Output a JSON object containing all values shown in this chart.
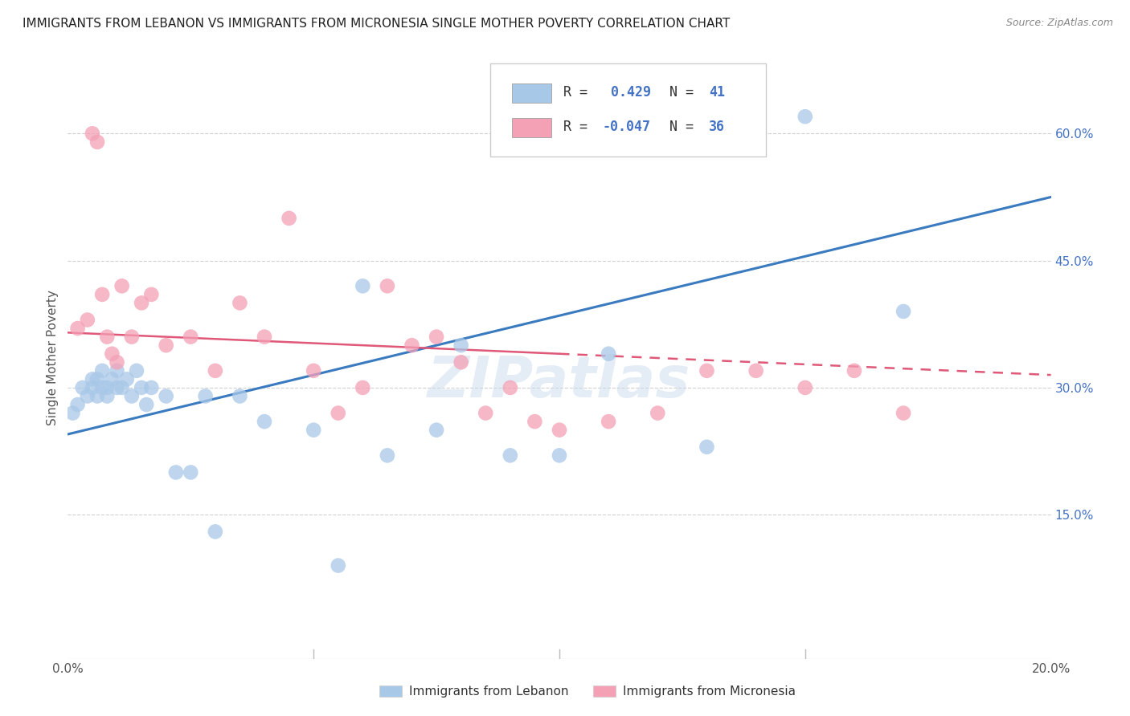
{
  "title": "IMMIGRANTS FROM LEBANON VS IMMIGRANTS FROM MICRONESIA SINGLE MOTHER POVERTY CORRELATION CHART",
  "source": "Source: ZipAtlas.com",
  "ylabel": "Single Mother Poverty",
  "legend_label1": "Immigrants from Lebanon",
  "legend_label2": "Immigrants from Micronesia",
  "R1": 0.429,
  "N1": 41,
  "R2": -0.047,
  "N2": 36,
  "blue_color": "#a8c8e8",
  "pink_color": "#f4a0b5",
  "blue_line_color": "#3a7abf",
  "pink_line_color": "#e05878",
  "lebanon_x": [
    0.001,
    0.002,
    0.003,
    0.004,
    0.005,
    0.005,
    0.006,
    0.006,
    0.007,
    0.007,
    0.008,
    0.008,
    0.009,
    0.01,
    0.01,
    0.011,
    0.012,
    0.013,
    0.014,
    0.015,
    0.016,
    0.017,
    0.02,
    0.022,
    0.025,
    0.028,
    0.03,
    0.035,
    0.04,
    0.05,
    0.055,
    0.06,
    0.065,
    0.075,
    0.08,
    0.09,
    0.1,
    0.11,
    0.13,
    0.15,
    0.17
  ],
  "lebanon_y": [
    0.27,
    0.28,
    0.3,
    0.29,
    0.31,
    0.3,
    0.29,
    0.31,
    0.3,
    0.32,
    0.3,
    0.29,
    0.31,
    0.3,
    0.32,
    0.3,
    0.31,
    0.29,
    0.32,
    0.3,
    0.28,
    0.3,
    0.29,
    0.2,
    0.2,
    0.29,
    0.13,
    0.29,
    0.26,
    0.25,
    0.09,
    0.42,
    0.22,
    0.25,
    0.35,
    0.22,
    0.22,
    0.34,
    0.23,
    0.62,
    0.39
  ],
  "micronesia_x": [
    0.002,
    0.004,
    0.005,
    0.006,
    0.007,
    0.008,
    0.009,
    0.01,
    0.011,
    0.013,
    0.015,
    0.017,
    0.02,
    0.025,
    0.03,
    0.035,
    0.04,
    0.045,
    0.05,
    0.055,
    0.06,
    0.065,
    0.07,
    0.075,
    0.08,
    0.085,
    0.09,
    0.095,
    0.1,
    0.11,
    0.12,
    0.13,
    0.14,
    0.15,
    0.16,
    0.17
  ],
  "micronesia_y": [
    0.37,
    0.38,
    0.6,
    0.59,
    0.41,
    0.36,
    0.34,
    0.33,
    0.42,
    0.36,
    0.4,
    0.41,
    0.35,
    0.36,
    0.32,
    0.4,
    0.36,
    0.5,
    0.32,
    0.27,
    0.3,
    0.42,
    0.35,
    0.36,
    0.33,
    0.27,
    0.3,
    0.26,
    0.25,
    0.26,
    0.27,
    0.32,
    0.32,
    0.3,
    0.32,
    0.27
  ],
  "watermark": "ZIPatlas",
  "xmin": 0.0,
  "xmax": 0.2,
  "ymin": -0.02,
  "ymax": 0.69,
  "yticks": [
    0.0,
    0.15,
    0.3,
    0.45,
    0.6
  ],
  "xticks": [
    0.0,
    0.05,
    0.1,
    0.15,
    0.2
  ],
  "blue_line_x0": 0.0,
  "blue_line_y0": 0.245,
  "blue_line_x1": 0.2,
  "blue_line_y1": 0.525,
  "pink_line_x0": 0.0,
  "pink_line_y0": 0.365,
  "pink_line_x1": 0.2,
  "pink_line_y1": 0.315
}
